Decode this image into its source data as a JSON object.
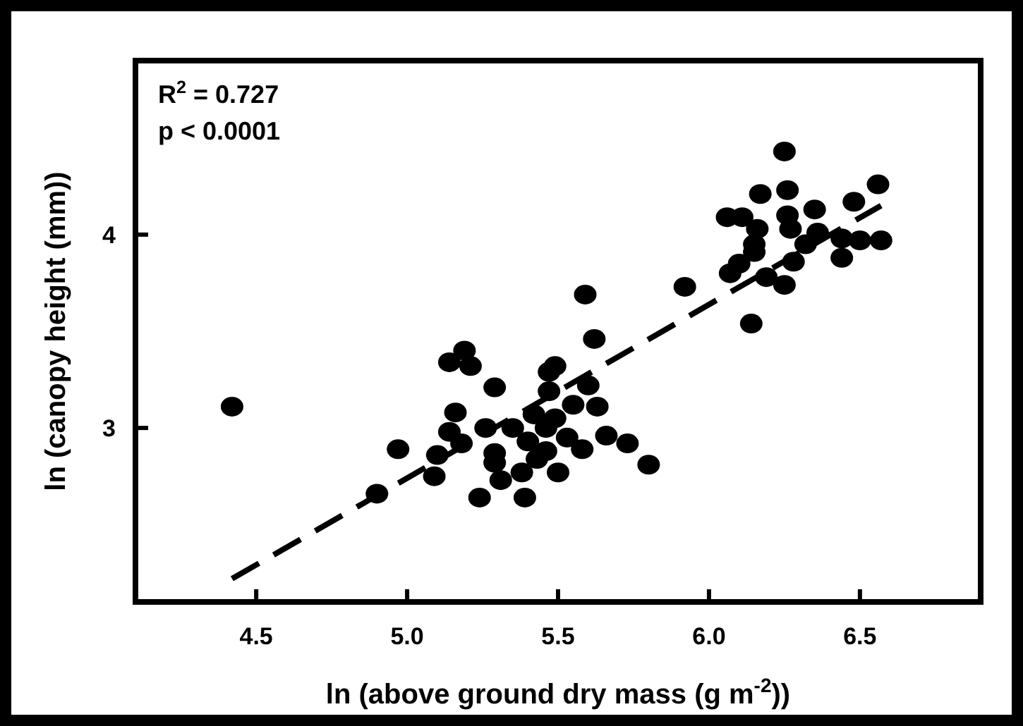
{
  "chart_data": {
    "type": "scatter",
    "xlabel": "ln (above ground dry mass (g m$^{-2}$))",
    "ylabel": "ln (canopy height (mm))",
    "annotations": [
      "R$^{2}$ = 0.727",
      "p < 0.0001"
    ],
    "xlim": [
      4.1,
      6.9
    ],
    "ylim": [
      2.1,
      4.9
    ],
    "xticks": [
      4.5,
      {
        "value": 5,
        "label": "5.0"
      },
      5.5,
      {
        "value": 6,
        "label": "6.0"
      },
      6.5
    ],
    "yticks": [
      3,
      4
    ],
    "grid": false,
    "series": [
      {
        "color": "#000000",
        "marker": "circle",
        "x": [
          4.42,
          4.9,
          4.97,
          5.09,
          5.1,
          5.14,
          5.19,
          5.21,
          5.16,
          5.14,
          5.18,
          5.26,
          5.29,
          5.24,
          5.29,
          5.29,
          5.31,
          5.35,
          5.38,
          5.39,
          5.42,
          5.4,
          5.43,
          5.47,
          5.47,
          5.46,
          6.25,
          6.17,
          6.26,
          6.56,
          6.06,
          6.11,
          6.16,
          6.26,
          6.35,
          6.48,
          6.15,
          6.27,
          6.36,
          6.44,
          6.57,
          6.15,
          6.1,
          6.07,
          6.28,
          6.19,
          6.25,
          6.44,
          6.32,
          6.5,
          6.14,
          5.92,
          5.59,
          5.62,
          5.49,
          5.6,
          5.55,
          5.63,
          5.49,
          5.53,
          5.58,
          5.66,
          5.73,
          5.8,
          5.5,
          5.46
        ],
        "values": [
          3.11,
          2.66,
          2.89,
          2.75,
          2.86,
          3.34,
          3.4,
          3.32,
          3.08,
          2.98,
          2.92,
          3.0,
          3.21,
          2.64,
          2.87,
          2.82,
          2.73,
          3.0,
          2.77,
          2.64,
          3.07,
          2.93,
          2.84,
          3.29,
          3.19,
          3.0,
          4.43,
          4.21,
          4.23,
          4.26,
          4.09,
          4.09,
          4.03,
          4.1,
          4.13,
          4.17,
          3.95,
          4.03,
          4.01,
          3.98,
          3.97,
          3.91,
          3.85,
          3.8,
          3.86,
          3.78,
          3.74,
          3.88,
          3.95,
          3.97,
          3.54,
          3.73,
          3.69,
          3.46,
          3.32,
          3.22,
          3.12,
          3.11,
          3.05,
          2.95,
          2.89,
          2.96,
          2.92,
          2.81,
          2.77,
          2.88
        ]
      },
      {
        "type": "line",
        "color": "#000000",
        "marker": "none",
        "line_style": "dashed",
        "x": [
          4.42,
          6.57
        ],
        "values": [
          2.22,
          4.15
        ]
      }
    ]
  }
}
